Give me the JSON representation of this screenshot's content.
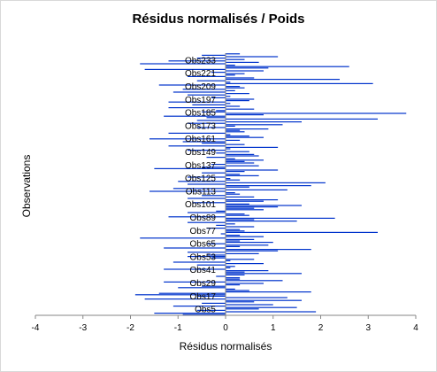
{
  "chart_data": {
    "type": "bar",
    "orientation": "horizontal",
    "title": "Résidus normalisés / Poids",
    "xlabel": "Résidus normalisés",
    "ylabel": "Observations",
    "xlim": [
      -4,
      4
    ],
    "xticks": [
      "-4",
      "-3",
      "-2",
      "-1",
      "0",
      "1",
      "2",
      "3",
      "4"
    ],
    "category_labels": [
      "Obs5",
      "Obs17",
      "Obs29",
      "Obs41",
      "Obs53",
      "Obs65",
      "Obs77",
      "Obs89",
      "Obs101",
      "Obs113",
      "Obs125",
      "Obs137",
      "Obs149",
      "Obs161",
      "Obs173",
      "Obs185",
      "Obs197",
      "Obs209",
      "Obs221",
      "Obs233"
    ],
    "bar_color": "#0033cc",
    "grid": false,
    "values": [
      -0.9,
      -1.5,
      1.9,
      -0.6,
      0.7,
      1.5,
      -1.1,
      1.0,
      -0.5,
      0.6,
      1.6,
      -1.7,
      1.3,
      -0.6,
      -1.9,
      -1.4,
      1.8,
      0.5,
      0.2,
      -1.0,
      -0.5,
      0.3,
      0.8,
      -1.3,
      1.2,
      0.3,
      0.3,
      -0.2,
      0.4,
      1.6,
      0.4,
      0.9,
      -1.3,
      0.1,
      0.2,
      -0.6,
      0.8,
      -1.1,
      0.1,
      0.6,
      -0.3,
      -0.8,
      -0.4,
      0.7,
      -0.8,
      1.1,
      1.8,
      -1.3,
      0.3,
      0.9,
      -0.4,
      1.0,
      0.3,
      0.6,
      -1.8,
      0.8,
      0.3,
      -0.1,
      3.2,
      0.4,
      0.3,
      -0.4,
      0.6,
      -0.2,
      0.2,
      -0.8,
      1.5,
      0.6,
      2.3,
      -1.2,
      0.5,
      0.4,
      -0.8,
      -0.2,
      0.8,
      0.6,
      1.1,
      1.6,
      0.5,
      -0.7,
      0.8,
      1.1,
      -0.8,
      0.6,
      -0.5,
      0.3,
      0.2,
      -1.6,
      1.3,
      -1.1,
      0.5,
      1.8,
      -0.8,
      2.1,
      -1.0,
      0.3,
      0.1,
      -0.8,
      0.7,
      0.3,
      -0.5,
      0.4,
      1.1,
      -1.5,
      -0.5,
      0.7,
      -0.3,
      0.6,
      0.4,
      0.8,
      0.2,
      -0.4,
      0.7,
      0.6,
      -0.2,
      0.5,
      -0.8,
      0.1,
      1.1,
      -1.2,
      0.4,
      -0.5,
      -0.9,
      0.3,
      -1.6,
      0.8,
      0.5,
      0.1,
      -1.2,
      0.4,
      0.3,
      0.9,
      -0.6,
      0.2,
      1.2,
      -0.8,
      1.6,
      -0.6,
      3.2,
      -0.4,
      -1.3,
      0.8,
      3.8,
      -0.5,
      -0.2,
      0.6,
      -1.2,
      0.3,
      -0.7,
      0.1,
      -1.2,
      0.5,
      0.6,
      -0.3,
      0.1,
      -0.8,
      0.5,
      -1.1,
      0.2,
      -0.9,
      0.4,
      0.3,
      -1.4,
      3.1,
      0.1,
      -0.6,
      2.4,
      0.6,
      -0.8,
      0.2,
      0.4,
      -0.3,
      0.8,
      -1.7,
      0.9,
      2.6,
      0.2,
      -1.8,
      0.7,
      -1.2,
      0.4,
      -0.6,
      1.1,
      -0.5,
      0.3
    ]
  }
}
